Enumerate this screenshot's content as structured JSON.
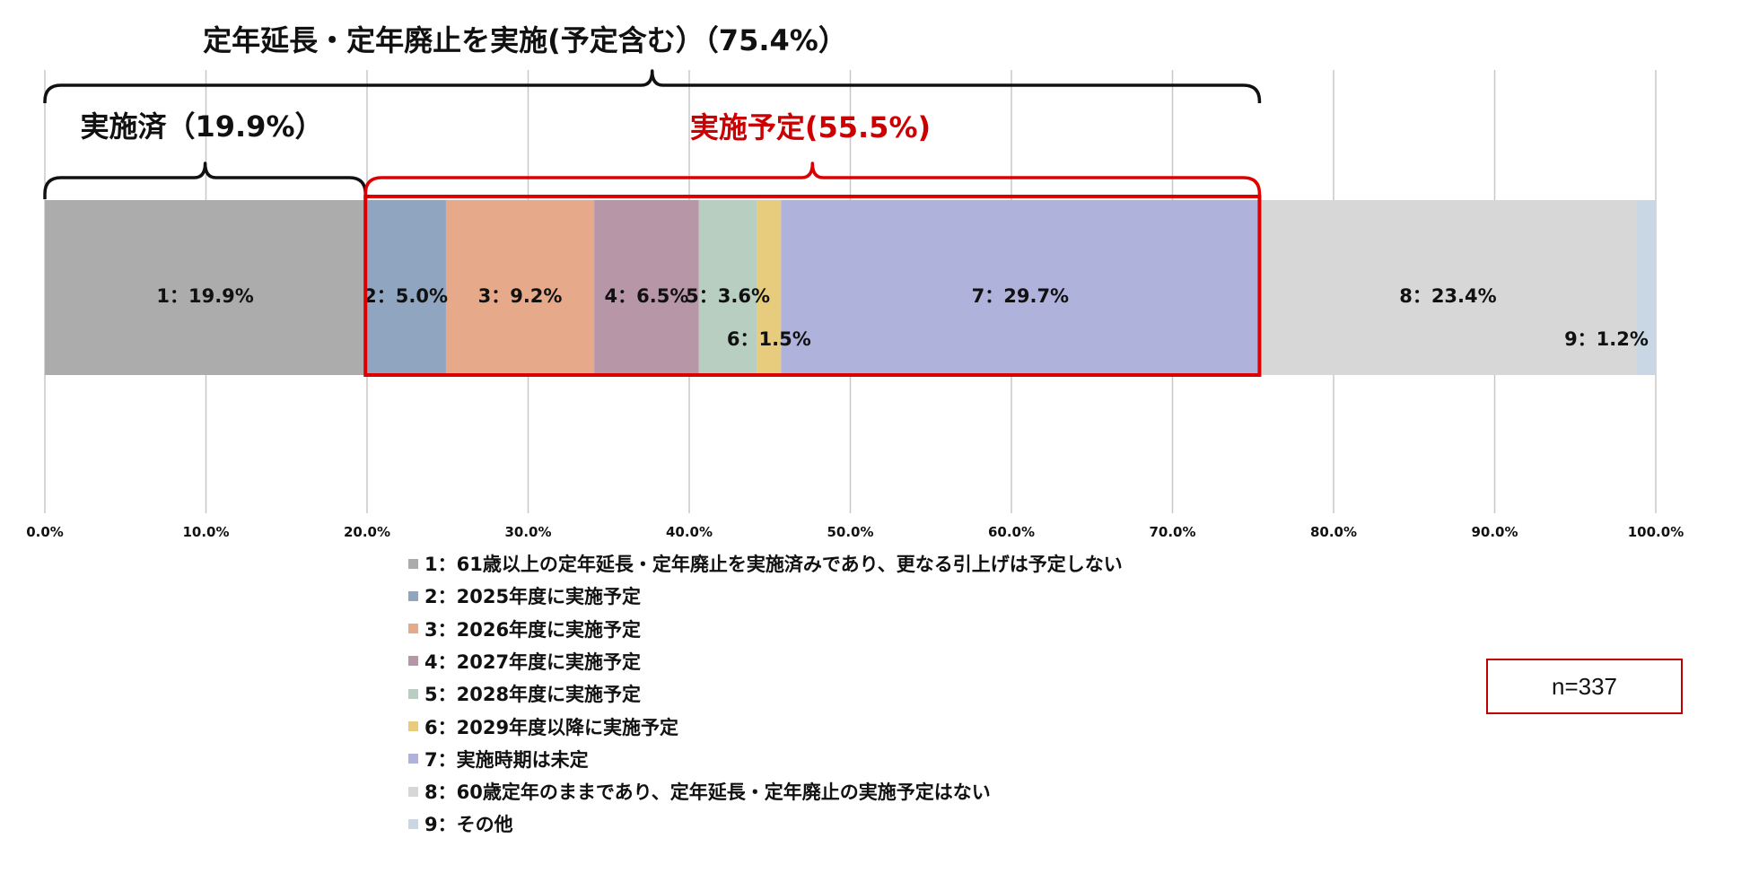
{
  "chart_data": {
    "type": "bar",
    "orientation": "horizontal-stacked-100",
    "title": "定年延長・定年廃止を実施(予定含む）（75.4%）",
    "annotations": {
      "implemented": "実施済（19.9%）",
      "planned": "実施予定(55.5%)"
    },
    "xlim": [
      0,
      100
    ],
    "x_ticks": [
      "0.0%",
      "10.0%",
      "20.0%",
      "30.0%",
      "40.0%",
      "50.0%",
      "60.0%",
      "70.0%",
      "80.0%",
      "90.0%",
      "100.0%"
    ],
    "grid": true,
    "legend_position": "bottom",
    "sample": "n=337",
    "series": [
      {
        "name": "1：61歳以上の定年延長・定年廃止を実施済みであり、更なる引上げは予定しない",
        "value": 19.9,
        "label": "1：19.9%",
        "color": "#acacac"
      },
      {
        "name": "2：2025年度に実施予定",
        "value": 5.0,
        "label": "2：5.0%",
        "color": "#8fa5c0"
      },
      {
        "name": "3：2026年度に実施予定",
        "value": 9.2,
        "label": "3：9.2%",
        "color": "#e6aa8a"
      },
      {
        "name": "4：2027年度に実施予定",
        "value": 6.5,
        "label": "4：6.5%",
        "color": "#b796a8"
      },
      {
        "name": "5：2028年度に実施予定",
        "value": 3.6,
        "label": "5：3.6%",
        "color": "#b8cec0"
      },
      {
        "name": "6：2029年度以降に実施予定",
        "value": 1.5,
        "label": "6：1.5%",
        "color": "#e8cc7d"
      },
      {
        "name": "7：実施時期は未定",
        "value": 29.7,
        "label": "7：29.7%",
        "color": "#afb2da"
      },
      {
        "name": "8：60歳定年のままであり、定年延長・定年廃止の実施予定はない",
        "value": 23.4,
        "label": "8：23.4%",
        "color": "#d7d7d7"
      },
      {
        "name": "9：その他",
        "value": 1.2,
        "label": "9：1.2%",
        "color": "#c9d6e4"
      }
    ]
  }
}
